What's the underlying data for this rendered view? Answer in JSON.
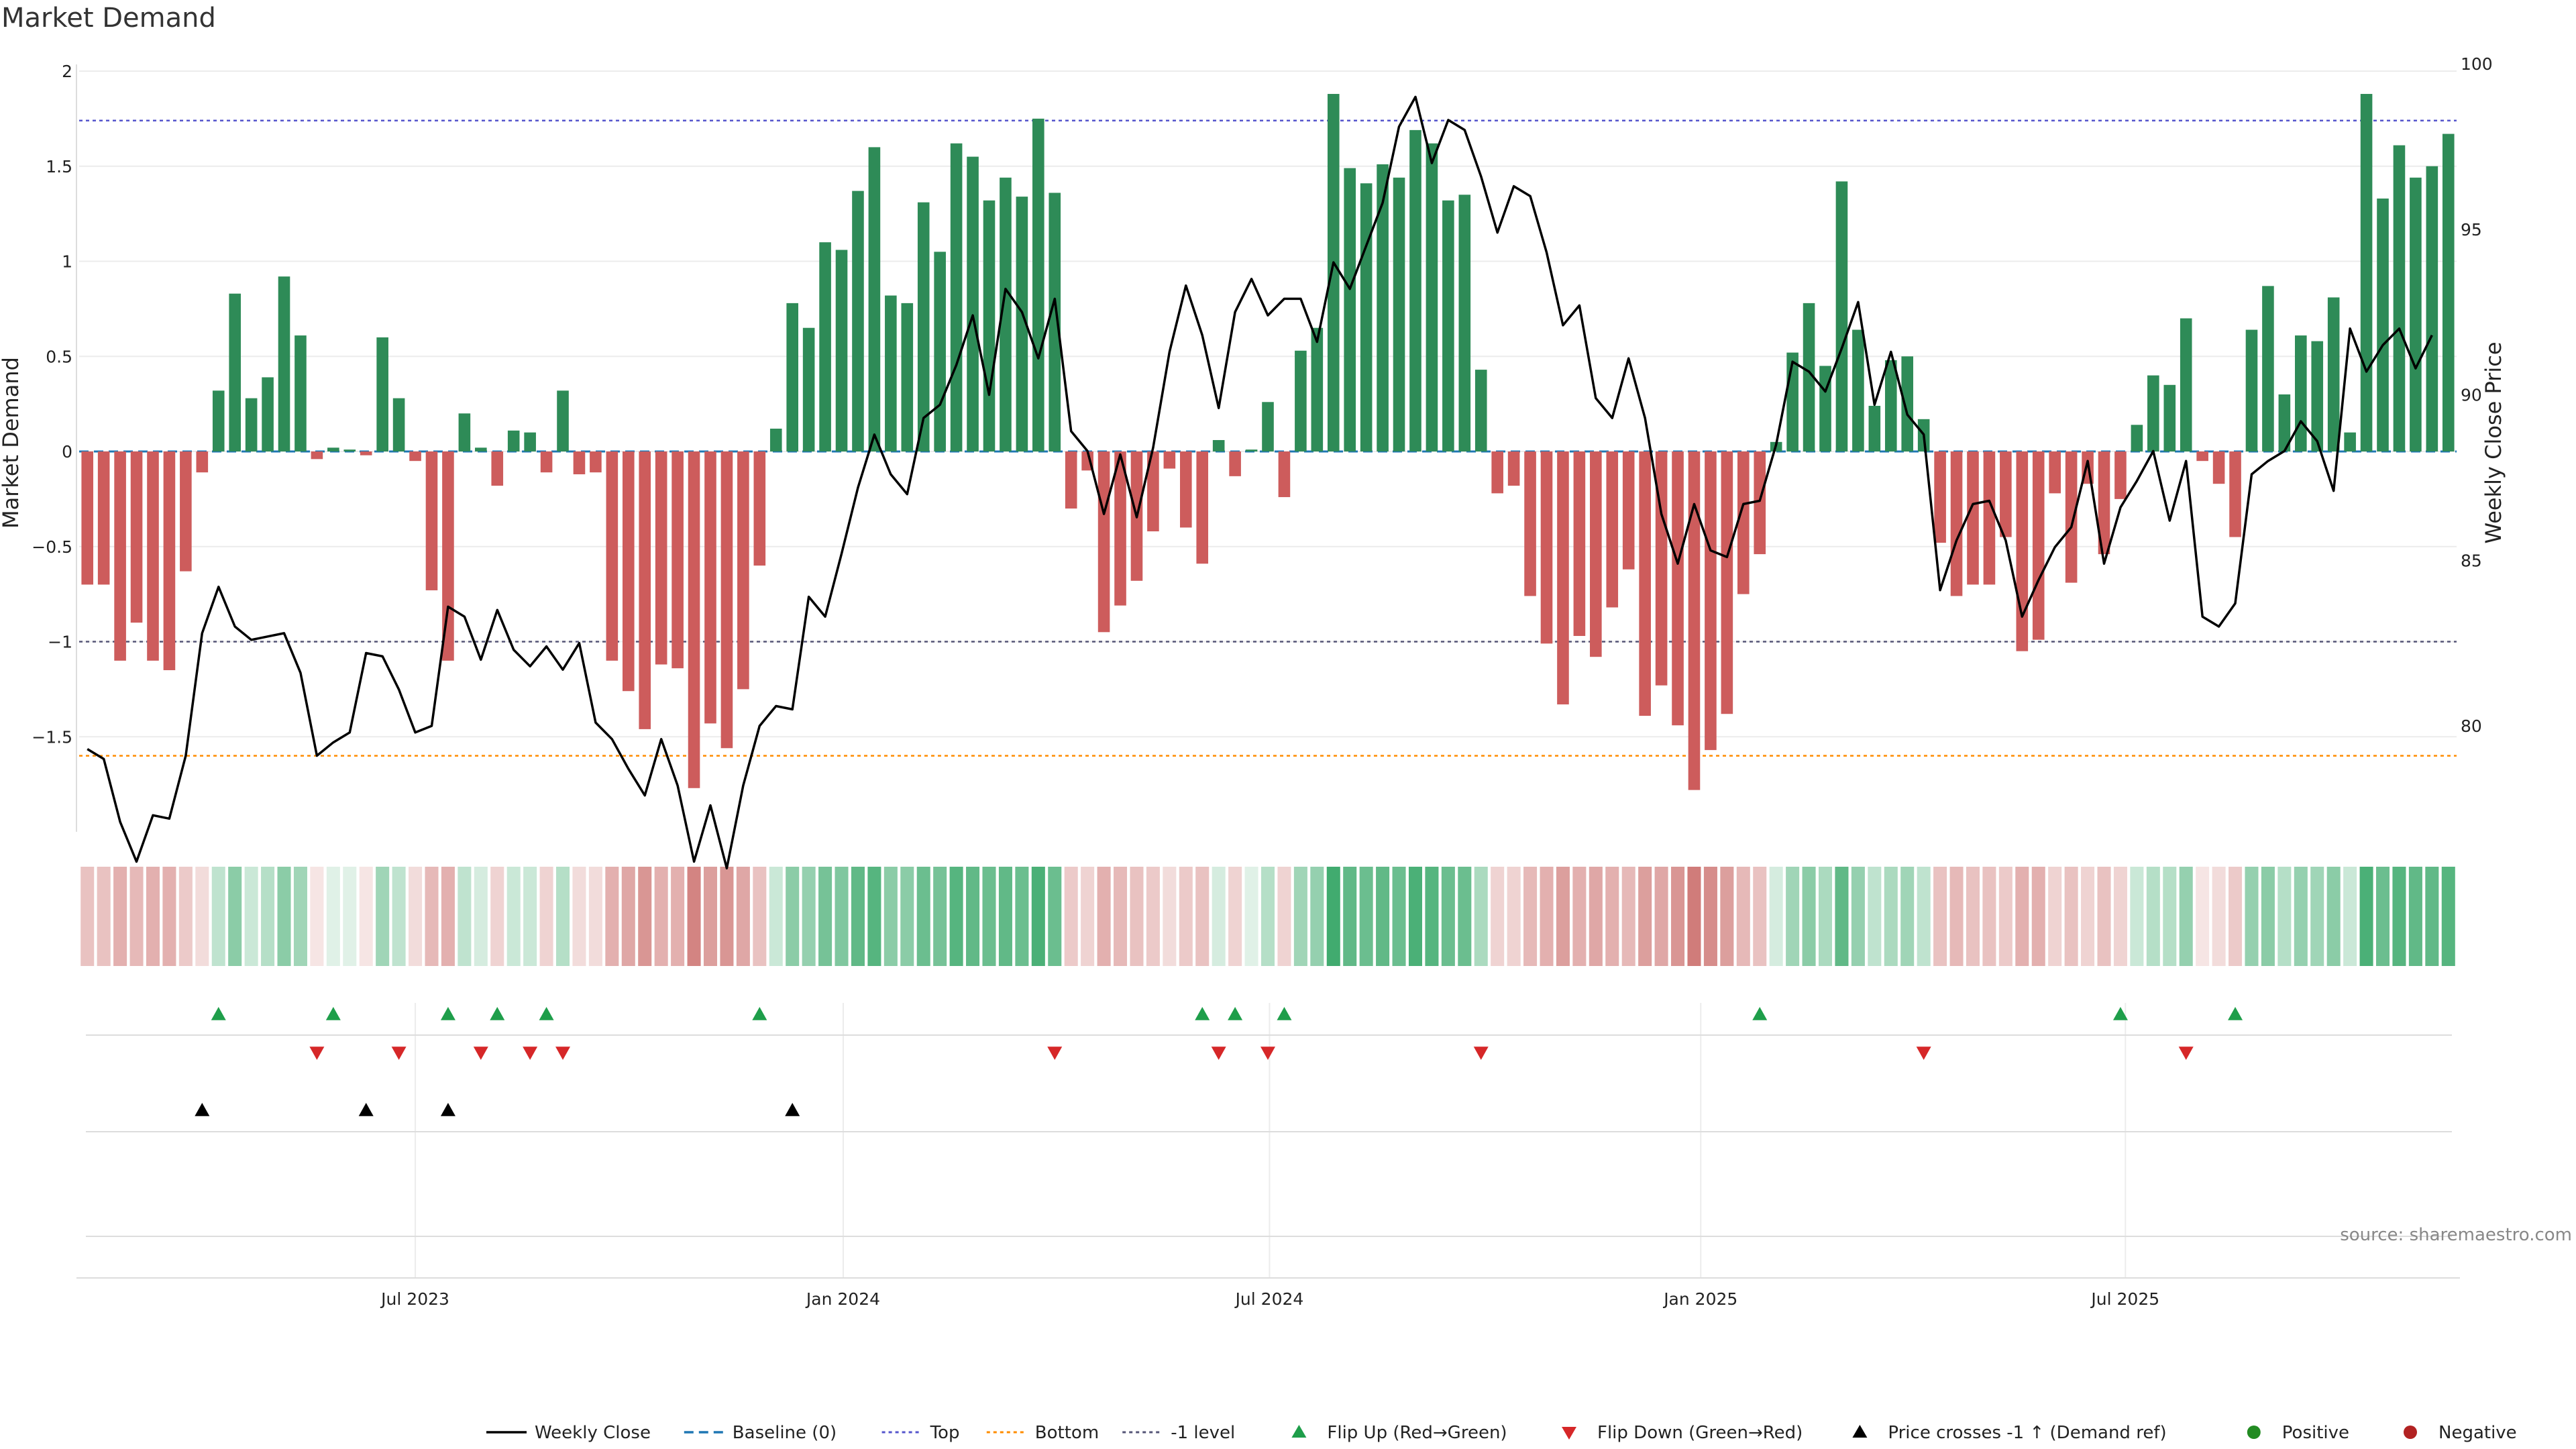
{
  "chart_data": {
    "type": "bar",
    "title": "Market Demand",
    "ylabel_left": "Market Demand",
    "ylabel_right": "Weekly Close Price",
    "ylim_left": [
      -2,
      2
    ],
    "ylim_right": [
      76.8,
      100
    ],
    "left_ticks": [
      {
        "v": 2,
        "t": "2"
      },
      {
        "v": 1.5,
        "t": "1.5"
      },
      {
        "v": 1,
        "t": "1"
      },
      {
        "v": 0.5,
        "t": "0.5"
      },
      {
        "v": 0,
        "t": "0"
      },
      {
        "v": -0.5,
        "t": "−0.5"
      },
      {
        "v": -1,
        "t": "−1"
      },
      {
        "v": -1.5,
        "t": "−1.5"
      }
    ],
    "right_ticks": [
      {
        "v": 100,
        "t": "100"
      },
      {
        "v": 95,
        "t": "95"
      },
      {
        "v": 90,
        "t": "90"
      },
      {
        "v": 85,
        "t": "85"
      },
      {
        "v": 80,
        "t": "80"
      }
    ],
    "x_ticks": [
      {
        "week": 20.5,
        "label": "Jul 2023"
      },
      {
        "week": 46.6,
        "label": "Jan 2024"
      },
      {
        "week": 72.6,
        "label": "Jul 2024"
      },
      {
        "week": 98.9,
        "label": "Jan 2025"
      },
      {
        "week": 124.8,
        "label": "Jul 2025"
      }
    ],
    "reference_lines": {
      "top": 1.74,
      "bottom": -1.6,
      "minus_one": -1,
      "baseline": 0
    },
    "colors": {
      "positive": "#2e8b57",
      "negative": "#cd5c5c",
      "price": "#000000",
      "baseline": "#1f77b4",
      "top": "#5555cc",
      "bottom": "#ff8c00",
      "minus_one": "#555577",
      "flip_up": "#1e9e4a",
      "flip_down": "#d62728",
      "cross": "#000000",
      "dot_pos": "#228b22",
      "dot_neg": "#b22222"
    },
    "demand": [
      -0.7,
      -0.7,
      -1.1,
      -0.9,
      -1.1,
      -1.15,
      -0.63,
      -0.11,
      0.32,
      0.83,
      0.28,
      0.39,
      0.92,
      0.61,
      -0.04,
      0.02,
      0.01,
      -0.02,
      0.6,
      0.28,
      -0.05,
      -0.73,
      -1.1,
      0.2,
      0.02,
      -0.18,
      0.11,
      0.1,
      -0.11,
      0.32,
      -0.12,
      -0.11,
      -1.1,
      -1.26,
      -1.46,
      -1.12,
      -1.14,
      -1.77,
      -1.43,
      -1.56,
      -1.25,
      -0.6,
      0.12,
      0.78,
      0.65,
      1.1,
      1.06,
      1.37,
      1.6,
      0.82,
      0.78,
      1.31,
      1.05,
      1.62,
      1.55,
      1.32,
      1.44,
      1.34,
      1.75,
      1.36,
      -0.3,
      -0.1,
      -0.95,
      -0.81,
      -0.68,
      -0.42,
      -0.09,
      -0.4,
      -0.59,
      0.06,
      -0.13,
      0.01,
      0.26,
      -0.24,
      0.53,
      0.65,
      1.88,
      1.49,
      1.41,
      1.51,
      1.44,
      1.69,
      1.62,
      1.32,
      1.35,
      0.43,
      -0.22,
      -0.18,
      -0.76,
      -1.01,
      -1.33,
      -0.97,
      -1.08,
      -0.82,
      -0.62,
      -1.39,
      -1.23,
      -1.44,
      -1.78,
      -1.57,
      -1.38,
      -0.75,
      -0.54,
      0.05,
      0.52,
      0.78,
      0.45,
      1.42,
      0.64,
      0.24,
      0.48,
      0.5,
      0.17,
      -0.48,
      -0.76,
      -0.7,
      -0.7,
      -0.45,
      -1.05,
      -0.99,
      -0.22,
      -0.69,
      -0.17,
      -0.54,
      -0.25,
      0.14,
      0.4,
      0.35,
      0.7,
      -0.05,
      -0.17,
      -0.45,
      0.64,
      0.87,
      0.3,
      0.61,
      0.58,
      0.81,
      0.1,
      1.88,
      1.33,
      1.61,
      1.44,
      1.5,
      1.67
    ],
    "price": [
      79.3,
      79.0,
      77.1,
      75.9,
      77.3,
      77.2,
      79.1,
      82.8,
      84.2,
      83.0,
      82.6,
      82.7,
      82.8,
      81.6,
      79.1,
      79.5,
      79.8,
      82.2,
      82.1,
      81.1,
      79.8,
      80.0,
      83.6,
      83.3,
      82.0,
      83.5,
      82.3,
      81.8,
      82.4,
      81.7,
      82.5,
      80.1,
      79.6,
      78.7,
      77.9,
      79.6,
      78.2,
      75.9,
      77.6,
      75.7,
      78.2,
      80.0,
      80.6,
      80.5,
      83.9,
      83.3,
      85.2,
      87.2,
      88.8,
      87.6,
      87.0,
      89.3,
      89.7,
      90.9,
      92.4,
      90.0,
      93.2,
      92.5,
      91.1,
      92.9,
      88.9,
      88.3,
      86.4,
      88.2,
      86.3,
      88.4,
      91.3,
      93.3,
      91.8,
      89.6,
      92.5,
      93.5,
      92.4,
      92.9,
      92.9,
      91.6,
      94.0,
      93.2,
      94.5,
      95.8,
      98.1,
      99.0,
      97.0,
      98.3,
      98.0,
      96.6,
      94.9,
      96.3,
      96.0,
      94.3,
      92.1,
      92.7,
      89.9,
      89.3,
      91.1,
      89.3,
      86.4,
      84.9,
      86.7,
      85.3,
      85.1,
      86.7,
      86.8,
      88.5,
      91.0,
      90.7,
      90.1,
      91.4,
      92.8,
      89.7,
      91.3,
      89.4,
      88.8,
      84.1,
      85.6,
      86.7,
      86.8,
      85.6,
      83.3,
      84.4,
      85.4,
      86.0,
      88.0,
      84.9,
      86.6,
      87.4,
      88.3,
      86.2,
      88.0,
      83.3,
      83.0,
      83.7,
      87.6,
      88.0,
      88.3,
      89.2,
      88.6,
      87.1,
      92.0,
      90.7,
      91.5,
      92.0,
      90.8,
      91.8
    ],
    "heat_alpha": [
      0.35,
      0.35,
      0.45,
      0.4,
      0.45,
      0.45,
      0.3,
      0.2,
      0.3,
      0.55,
      0.25,
      0.35,
      0.55,
      0.45,
      0.15,
      0.15,
      0.15,
      0.15,
      0.45,
      0.3,
      0.2,
      0.4,
      0.45,
      0.3,
      0.2,
      0.25,
      0.25,
      0.25,
      0.25,
      0.35,
      0.2,
      0.2,
      0.45,
      0.5,
      0.6,
      0.45,
      0.45,
      0.7,
      0.55,
      0.6,
      0.5,
      0.35,
      0.25,
      0.55,
      0.5,
      0.65,
      0.6,
      0.75,
      0.8,
      0.55,
      0.55,
      0.7,
      0.65,
      0.8,
      0.75,
      0.7,
      0.75,
      0.7,
      0.85,
      0.7,
      0.3,
      0.25,
      0.45,
      0.4,
      0.35,
      0.3,
      0.2,
      0.3,
      0.35,
      0.2,
      0.25,
      0.15,
      0.35,
      0.25,
      0.45,
      0.5,
      0.9,
      0.75,
      0.7,
      0.75,
      0.7,
      0.85,
      0.8,
      0.7,
      0.7,
      0.4,
      0.25,
      0.25,
      0.4,
      0.45,
      0.55,
      0.45,
      0.5,
      0.45,
      0.4,
      0.55,
      0.5,
      0.6,
      0.75,
      0.65,
      0.55,
      0.4,
      0.35,
      0.2,
      0.45,
      0.55,
      0.4,
      0.75,
      0.5,
      0.3,
      0.4,
      0.45,
      0.3,
      0.35,
      0.4,
      0.35,
      0.35,
      0.3,
      0.45,
      0.45,
      0.25,
      0.35,
      0.25,
      0.35,
      0.25,
      0.25,
      0.35,
      0.35,
      0.5,
      0.15,
      0.2,
      0.3,
      0.5,
      0.55,
      0.35,
      0.5,
      0.45,
      0.55,
      0.25,
      0.85,
      0.7,
      0.8,
      0.75,
      0.75,
      0.8
    ],
    "flip_up_weeks": [
      8,
      15,
      22,
      25,
      28,
      41,
      68,
      70,
      73,
      102,
      124,
      131
    ],
    "flip_down_weeks": [
      14,
      19,
      24,
      27,
      29,
      59,
      69,
      72,
      85,
      112,
      128
    ],
    "price_cross_weeks": [
      7,
      17,
      22,
      43
    ],
    "source": "source: sharemaestro.com",
    "legend": [
      {
        "label": "Weekly Close",
        "kind": "line"
      },
      {
        "label": "Baseline (0)",
        "kind": "dashed"
      },
      {
        "label": "Top",
        "kind": "dotted-top"
      },
      {
        "label": "Bottom",
        "kind": "dotted-bottom"
      },
      {
        "label": "-1 level",
        "kind": "dotted-minus"
      },
      {
        "label": "Flip Up (Red→Green)",
        "kind": "tri-up"
      },
      {
        "label": "Flip Down (Green→Red)",
        "kind": "tri-down"
      },
      {
        "label": "Price crosses -1 ↑ (Demand ref)",
        "kind": "tri-black"
      },
      {
        "label": "Positive",
        "kind": "dot-pos"
      },
      {
        "label": "Negative",
        "kind": "dot-neg"
      }
    ]
  }
}
